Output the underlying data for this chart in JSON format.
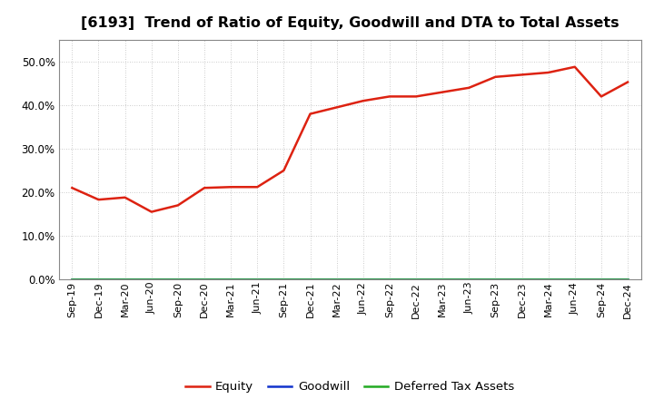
{
  "title": "[6193]  Trend of Ratio of Equity, Goodwill and DTA to Total Assets",
  "x_labels": [
    "Sep-19",
    "Dec-19",
    "Mar-20",
    "Jun-20",
    "Sep-20",
    "Dec-20",
    "Mar-21",
    "Jun-21",
    "Sep-21",
    "Dec-21",
    "Mar-22",
    "Jun-22",
    "Sep-22",
    "Dec-22",
    "Mar-23",
    "Jun-23",
    "Sep-23",
    "Dec-23",
    "Mar-24",
    "Jun-24",
    "Sep-24",
    "Dec-24"
  ],
  "equity": [
    0.21,
    0.183,
    0.188,
    0.155,
    0.17,
    0.21,
    0.212,
    0.212,
    0.25,
    0.38,
    0.395,
    0.41,
    0.42,
    0.42,
    0.43,
    0.44,
    0.465,
    0.47,
    0.475,
    0.488,
    0.42,
    0.453
  ],
  "goodwill": [
    0.0,
    0.0,
    0.0,
    0.0,
    0.0,
    0.0,
    0.0,
    0.0,
    0.0,
    0.0,
    0.0,
    0.0,
    0.0,
    0.0,
    0.0,
    0.0,
    0.0,
    0.0,
    0.0,
    0.0,
    0.0,
    0.0
  ],
  "dta": [
    0.0,
    0.0,
    0.0,
    0.0,
    0.0,
    0.0,
    0.0,
    0.0,
    0.0,
    0.0,
    0.0,
    0.0,
    0.0,
    0.0,
    0.0,
    0.0,
    0.0,
    0.0,
    0.0,
    0.0,
    0.0,
    0.0
  ],
  "equity_color": "#dd2211",
  "goodwill_color": "#1133cc",
  "dta_color": "#22aa22",
  "ylim": [
    0.0,
    0.55
  ],
  "yticks": [
    0.0,
    0.1,
    0.2,
    0.3,
    0.4,
    0.5
  ],
  "background_color": "#ffffff",
  "plot_bg_color": "#ffffff",
  "grid_color": "#bbbbbb",
  "title_fontsize": 11.5,
  "tick_fontsize": 8,
  "legend_labels": [
    "Equity",
    "Goodwill",
    "Deferred Tax Assets"
  ]
}
